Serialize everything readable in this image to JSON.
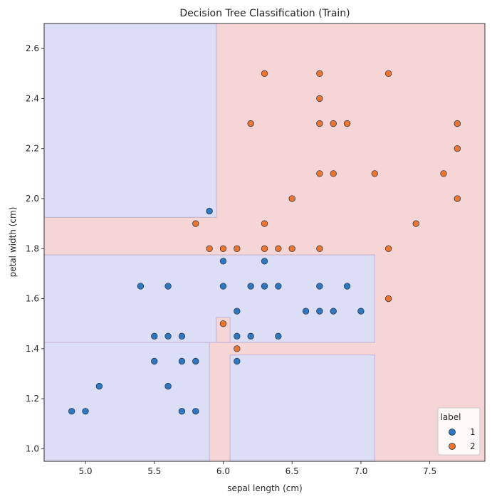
{
  "chart_data": {
    "type": "scatter",
    "title": "Decision Tree Classification (Train)",
    "xlabel": "sepal length (cm)",
    "ylabel": "petal width (cm)",
    "xlim": [
      4.7,
      7.9
    ],
    "ylim": [
      0.95,
      2.7
    ],
    "xticks": [
      "5.0",
      "5.5",
      "6.0",
      "6.5",
      "7.0",
      "7.5"
    ],
    "yticks": [
      "1.0",
      "1.2",
      "1.4",
      "1.6",
      "1.8",
      "2.0",
      "2.2",
      "2.4",
      "2.6"
    ],
    "grid": false,
    "legend": {
      "title": "label",
      "position": "lower-right"
    },
    "background_color": "#f5d5d6",
    "regions": [
      {
        "class": "1",
        "x": [
          4.7,
          5.95
        ],
        "y": [
          1.925,
          2.7
        ],
        "color": "#dcdef6"
      },
      {
        "class": "1",
        "x": [
          4.7,
          7.1
        ],
        "y": [
          1.425,
          1.775
        ],
        "color": "#dcdef6"
      },
      {
        "class": "1",
        "x": [
          4.7,
          5.9
        ],
        "y": [
          0.95,
          1.425
        ],
        "color": "#dcdef6"
      },
      {
        "class": "1",
        "x": [
          6.05,
          7.1
        ],
        "y": [
          0.95,
          1.375
        ],
        "color": "#dcdef6"
      },
      {
        "class": "2",
        "x": [
          5.95,
          6.05
        ],
        "y": [
          1.425,
          1.525
        ],
        "color": "#f5d5d6"
      }
    ],
    "series": [
      {
        "name": "1",
        "color": "#2f78c0",
        "points": [
          [
            4.9,
            1.15
          ],
          [
            5.0,
            1.15
          ],
          [
            5.1,
            1.25
          ],
          [
            5.4,
            1.65
          ],
          [
            5.5,
            1.45
          ],
          [
            5.5,
            1.35
          ],
          [
            5.6,
            1.45
          ],
          [
            5.6,
            1.65
          ],
          [
            5.6,
            1.25
          ],
          [
            5.7,
            1.45
          ],
          [
            5.7,
            1.35
          ],
          [
            5.7,
            1.15
          ],
          [
            5.8,
            1.35
          ],
          [
            5.8,
            1.15
          ],
          [
            5.9,
            1.95
          ],
          [
            6.0,
            1.75
          ],
          [
            6.0,
            1.65
          ],
          [
            6.1,
            1.55
          ],
          [
            6.1,
            1.45
          ],
          [
            6.1,
            1.35
          ],
          [
            6.2,
            1.65
          ],
          [
            6.2,
            1.45
          ],
          [
            6.3,
            1.75
          ],
          [
            6.3,
            1.65
          ],
          [
            6.4,
            1.65
          ],
          [
            6.4,
            1.45
          ],
          [
            6.6,
            1.55
          ],
          [
            6.7,
            1.65
          ],
          [
            6.7,
            1.55
          ],
          [
            6.8,
            1.55
          ],
          [
            6.9,
            1.65
          ],
          [
            7.0,
            1.55
          ]
        ]
      },
      {
        "name": "2",
        "color": "#ed7530",
        "points": [
          [
            5.8,
            1.9
          ],
          [
            5.9,
            1.8
          ],
          [
            6.0,
            1.8
          ],
          [
            6.0,
            1.5
          ],
          [
            6.1,
            1.8
          ],
          [
            6.1,
            1.4
          ],
          [
            6.2,
            2.3
          ],
          [
            6.3,
            2.5
          ],
          [
            6.3,
            1.9
          ],
          [
            6.3,
            1.8
          ],
          [
            6.4,
            1.8
          ],
          [
            6.5,
            2.0
          ],
          [
            6.5,
            1.8
          ],
          [
            6.7,
            2.5
          ],
          [
            6.7,
            2.4
          ],
          [
            6.7,
            2.3
          ],
          [
            6.7,
            2.1
          ],
          [
            6.7,
            1.8
          ],
          [
            6.8,
            2.3
          ],
          [
            6.8,
            2.1
          ],
          [
            6.9,
            2.3
          ],
          [
            7.1,
            2.1
          ],
          [
            7.2,
            2.5
          ],
          [
            7.2,
            1.8
          ],
          [
            7.2,
            1.6
          ],
          [
            7.4,
            1.9
          ],
          [
            7.6,
            2.1
          ],
          [
            7.7,
            2.3
          ],
          [
            7.7,
            2.2
          ],
          [
            7.7,
            2.0
          ]
        ]
      }
    ]
  }
}
